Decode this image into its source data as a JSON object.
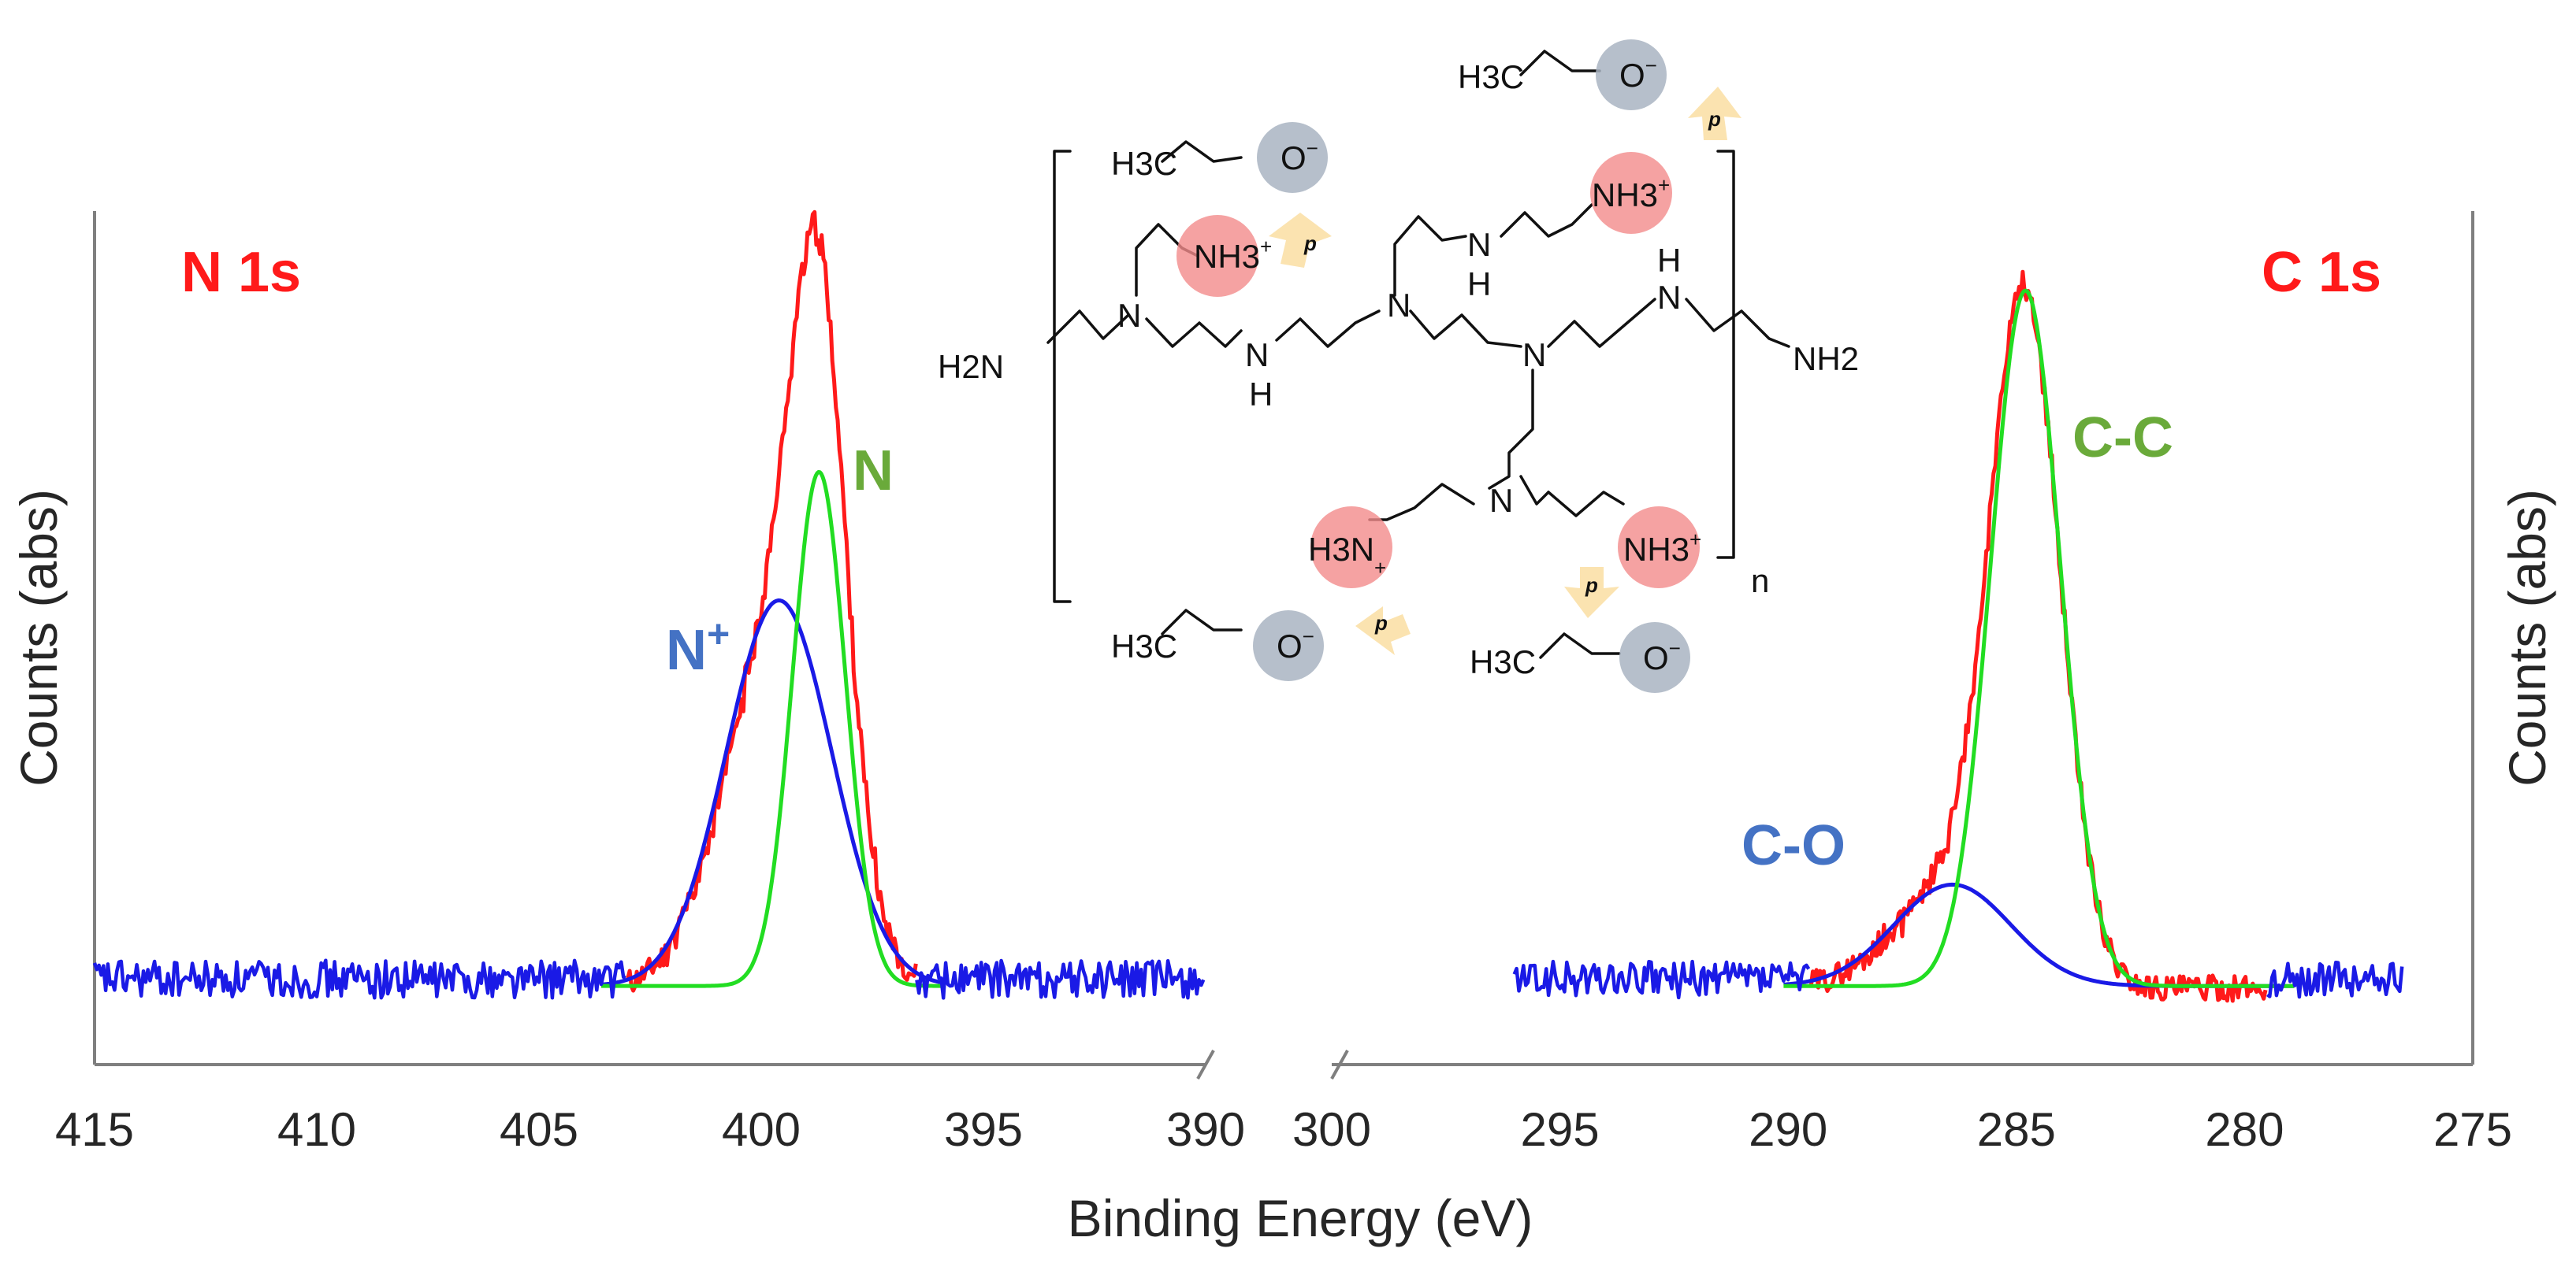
{
  "figure": {
    "xlabel": "Binding Energy (eV)",
    "ylabel_left": "Counts (abs)",
    "ylabel_right": "Counts (abs)"
  },
  "colors": {
    "measured": "#ff1a1a",
    "component_neutral": "#22dd22",
    "component_oxidized": "#1a1ae6",
    "label_red": "#ff1a1a",
    "label_green": "#6aaa3a",
    "label_blue": "#4472c4",
    "cation_sphere": "#f28b8b",
    "anion_sphere": "#a9b4c2",
    "arrow": "#fbe3b0"
  },
  "chart_data": [
    {
      "type": "line",
      "panel_label": "N 1s",
      "xlabel": "Binding Energy (eV)",
      "ylabel": "Counts (abs)",
      "xlim": [
        415,
        390
      ],
      "x_ticks": [
        415,
        410,
        405,
        400,
        395,
        390
      ],
      "x_reversed": true,
      "yticks_shown": false,
      "series": [
        {
          "name": "N+",
          "role": "component",
          "color": "#1a1ae6",
          "center": 399.6,
          "fwhm": 2.8,
          "height": 0.51
        },
        {
          "name": "N",
          "role": "component",
          "color": "#22dd22",
          "center": 398.7,
          "fwhm": 1.4,
          "height": 0.68
        },
        {
          "name": "",
          "role": "measured",
          "color": "#ff1a1a",
          "x_range": [
            403,
            396.5
          ],
          "peak_x": 398.9,
          "peak_y": 1.0
        },
        {
          "name": "",
          "role": "baseline",
          "color": "#1a1ae6",
          "x_range": [
            415,
            390
          ]
        }
      ],
      "annotations": [
        {
          "text": "N",
          "superscript": "+",
          "color": "#4472c4"
        },
        {
          "text": "N",
          "superscript": "",
          "color": "#6aaa3a"
        }
      ]
    },
    {
      "type": "line",
      "panel_label": "C 1s",
      "xlabel": "Binding Energy (eV)",
      "ylabel": "Counts (abs)",
      "xlim": [
        300,
        275
      ],
      "x_ticks": [
        300,
        295,
        290,
        285,
        280,
        275
      ],
      "x_reversed": true,
      "yticks_shown": false,
      "series": [
        {
          "name": "C-O",
          "role": "component",
          "color": "#1a1ae6",
          "center": 286.4,
          "fwhm": 3.0,
          "height": 0.14
        },
        {
          "name": "C-C",
          "role": "component",
          "color": "#22dd22",
          "center": 284.8,
          "fwhm": 1.8,
          "height": 0.96
        },
        {
          "name": "",
          "role": "measured",
          "color": "#ff1a1a",
          "x_range": [
            289.5,
            279.5
          ],
          "peak_x": 284.8,
          "peak_y": 0.97
        },
        {
          "name": "",
          "role": "baseline",
          "color": "#1a1ae6",
          "x_range": [
            296,
            276.5
          ]
        }
      ],
      "annotations": [
        {
          "text": "C-C",
          "superscript": "",
          "color": "#6aaa3a"
        },
        {
          "text": "C-O",
          "superscript": "",
          "color": "#4472c4"
        }
      ]
    }
  ],
  "inset": {
    "polymer_end_left": "H2N",
    "polymer_end_right": "NH2",
    "repeat_subscript": "n",
    "methyl_label": "H3C",
    "anion_label": "O",
    "anion_charge": "−",
    "cation_label": "NH3",
    "cation_label_alt": "H3N",
    "cation_charge": "+",
    "amine_label": "N",
    "hydrogen_label": "H",
    "arrow_label": "p"
  }
}
